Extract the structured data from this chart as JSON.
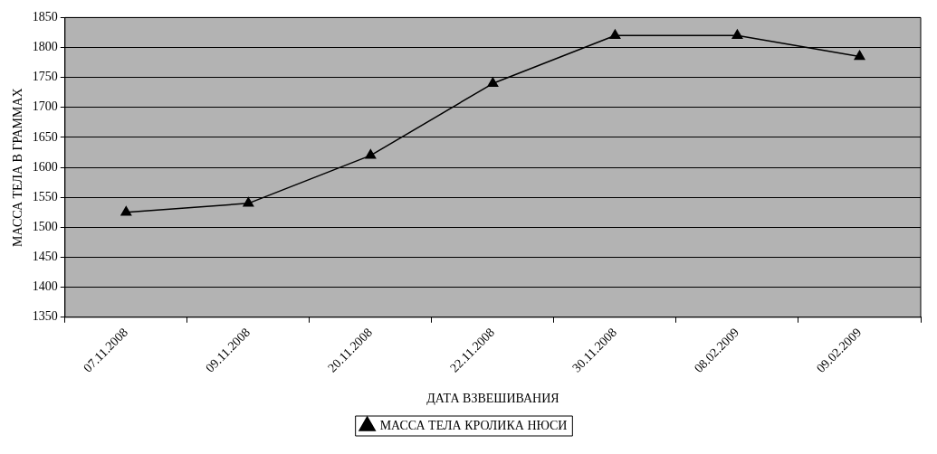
{
  "chart_data": {
    "type": "line",
    "xlabel": "ДАТА ВЗВЕШИВАНИЯ",
    "ylabel": "МАССА ТЕЛА В ГРАММАХ",
    "categories": [
      "07.11.2008",
      "09.11.2008",
      "20.11.2008",
      "22.11.2008",
      "30.11.2008",
      "08.02.2009",
      "09.02.2009"
    ],
    "series": [
      {
        "name": "МАССА ТЕЛА КРОЛИКА НЮСИ",
        "color": "#000000",
        "values": [
          1525,
          1540,
          1620,
          1740,
          1820,
          1820,
          1785
        ]
      }
    ],
    "ylim": [
      1350,
      1850
    ],
    "yticks": [
      1350,
      1400,
      1450,
      1500,
      1550,
      1600,
      1650,
      1700,
      1750,
      1800,
      1850
    ],
    "grid": "y",
    "legend": "bottom",
    "marker": "triangle",
    "line_style": "solid"
  }
}
